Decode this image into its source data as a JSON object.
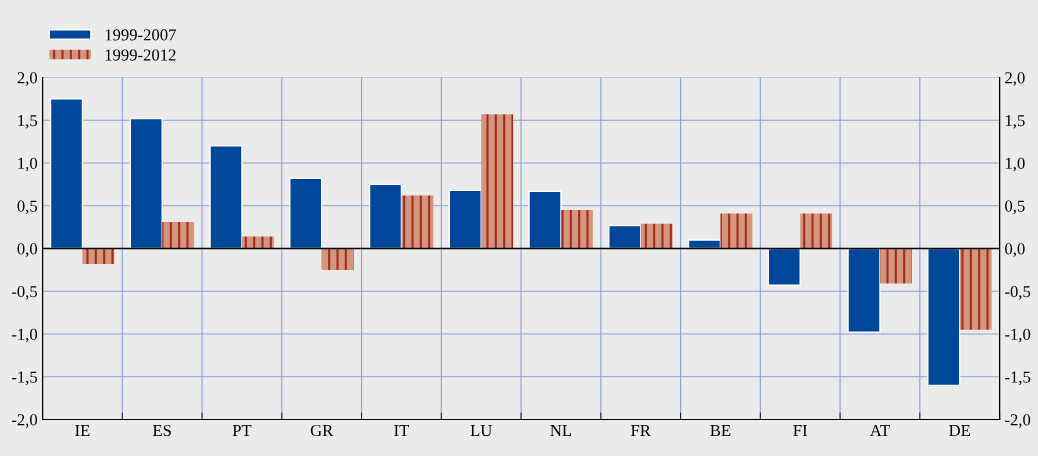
{
  "chart_data": {
    "type": "bar",
    "categories": [
      "IE",
      "ES",
      "PT",
      "GR",
      "IT",
      "LU",
      "NL",
      "FR",
      "BE",
      "FI",
      "AT",
      "DE"
    ],
    "series": [
      {
        "name": "1999-2007",
        "color": "#00479a",
        "values": [
          1.75,
          1.52,
          1.2,
          0.82,
          0.75,
          0.68,
          0.67,
          0.27,
          0.1,
          -0.43,
          -0.98,
          -1.6
        ]
      },
      {
        "name": "1999-2012",
        "color": "#d4957f",
        "values": [
          -0.18,
          0.31,
          0.14,
          -0.25,
          0.62,
          1.57,
          0.45,
          0.29,
          0.41,
          0.41,
          -0.41,
          -0.95
        ]
      }
    ],
    "ylim": [
      -2,
      2
    ],
    "yticks": [
      {
        "value": -2,
        "label": "-2,0"
      },
      {
        "value": -1.5,
        "label": "-1,5"
      },
      {
        "value": -1,
        "label": "-1,0"
      },
      {
        "value": -0.5,
        "label": "-0,5"
      },
      {
        "value": 0,
        "label": "0,0"
      },
      {
        "value": 0.5,
        "label": "0,5"
      },
      {
        "value": 1,
        "label": "1,0"
      },
      {
        "value": 1.5,
        "label": "1,5"
      },
      {
        "value": 2,
        "label": "2,0"
      }
    ],
    "y2lim": [
      -2,
      2
    ],
    "y2ticks": [
      {
        "value": -2,
        "label": "-2,0"
      },
      {
        "value": -1.5,
        "label": "-1,5"
      },
      {
        "value": -1,
        "label": "-1,0"
      },
      {
        "value": -0.5,
        "label": "-0,5"
      },
      {
        "value": 0,
        "label": "0,0"
      },
      {
        "value": 0.5,
        "label": "0,5"
      },
      {
        "value": 1,
        "label": "1,0"
      },
      {
        "value": 1.5,
        "label": "1,5"
      },
      {
        "value": 2,
        "label": "2,0"
      }
    ],
    "grid": true,
    "legend": "top left"
  }
}
